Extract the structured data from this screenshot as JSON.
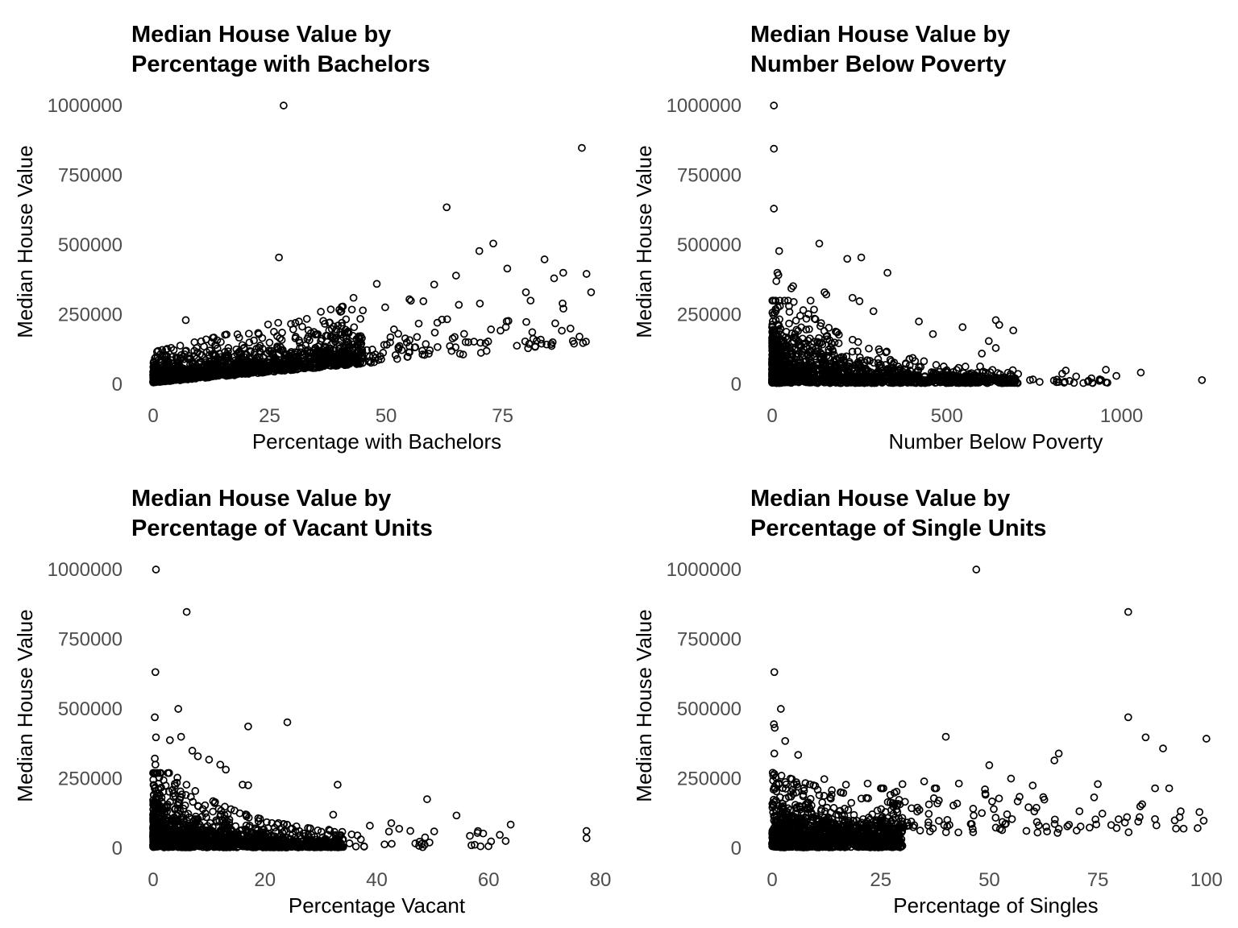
{
  "page": {
    "background": "#ffffff",
    "description": "2x2 grid of scatter plots of census tract data"
  },
  "chart_data": {
    "type": "scatter",
    "figure_layout": "2x2 grid, shared y variable",
    "grid": "off",
    "axis_lines": "none",
    "legend": "none",
    "style": {
      "point_shape": "open-circle",
      "point_color": "#000000",
      "title_color": "#000000",
      "axis_title_color": "#000000",
      "tick_label_color": "#4d4d4d",
      "background": "#ffffff"
    },
    "panels": [
      {
        "id": "bachelors",
        "title_lines": [
          "Median House Value by",
          " Percentage with Bachelors"
        ],
        "xlabel": "Percentage with Bachelors",
        "ylabel": "Median House Value",
        "x_ticks": [
          0,
          25,
          50,
          75
        ],
        "x_range": [
          0,
          96
        ],
        "y_ticks": [
          0,
          250000,
          500000,
          750000,
          1000000
        ],
        "y_range": [
          0,
          1050000
        ],
        "trend": "positive correlation; dense rising band from ~40000 at x=0 to ~200000 at x=80",
        "outliers": [
          [
            28,
            1000000
          ],
          [
            92,
            848000
          ],
          [
            63,
            635000
          ],
          [
            73,
            505000
          ],
          [
            70,
            478000
          ],
          [
            27,
            455000
          ],
          [
            84,
            448000
          ],
          [
            76,
            415000
          ],
          [
            88,
            400000
          ],
          [
            93,
            396000
          ],
          [
            65,
            390000
          ],
          [
            48,
            360000
          ],
          [
            43,
            310000
          ],
          [
            55,
            305000
          ],
          [
            80,
            330000
          ],
          [
            94,
            330000
          ],
          [
            81,
            300000
          ],
          [
            58,
            298000
          ],
          [
            45,
            265000
          ],
          [
            36,
            260000
          ],
          [
            62,
            232000
          ],
          [
            7,
            230000
          ]
        ],
        "cloud": {
          "seed": 11,
          "components": [
            {
              "n": 1360,
              "x": {
                "min": 0,
                "max": 45,
                "pow": 1.4
              },
              "y": {
                "base": 6000,
                "slope": 1500,
                "spread": 26000,
                "spreadSlope": 600,
                "clampMax": 380000
              }
            },
            {
              "n": 135,
              "x": {
                "min": 40,
                "max": 93,
                "pow": 1.6
              },
              "y": {
                "base": 6000,
                "slope": 1500,
                "spread": 26000,
                "spreadSlope": 600,
                "clampMax": 380000
              }
            }
          ]
        }
      },
      {
        "id": "poverty",
        "title_lines": [
          "Median House Value by",
          " Number Below Poverty"
        ],
        "xlabel": "Number Below Poverty",
        "ylabel": "Median House Value",
        "x_ticks": [
          0,
          500,
          1000
        ],
        "x_range": [
          0,
          1280
        ],
        "y_ticks": [
          0,
          250000,
          500000,
          750000,
          1000000
        ],
        "y_range": [
          0,
          1050000
        ],
        "trend": "negative/decaying; dense mass below x=300, values shrink toward 0 as poverty count grows",
        "outliers": [
          [
            5,
            1000000
          ],
          [
            5,
            845000
          ],
          [
            5,
            630000
          ],
          [
            135,
            505000
          ],
          [
            20,
            478000
          ],
          [
            255,
            455000
          ],
          [
            215,
            450000
          ],
          [
            330,
            400000
          ],
          [
            15,
            400000
          ],
          [
            18,
            392000
          ],
          [
            12,
            370000
          ],
          [
            60,
            352000
          ],
          [
            55,
            344000
          ],
          [
            150,
            330000
          ],
          [
            155,
            322000
          ],
          [
            230,
            310000
          ],
          [
            110,
            300000
          ],
          [
            250,
            298000
          ],
          [
            290,
            262000
          ],
          [
            120,
            268000
          ],
          [
            420,
            225000
          ],
          [
            640,
            230000
          ],
          [
            650,
            213000
          ],
          [
            545,
            205000
          ],
          [
            690,
            193000
          ],
          [
            460,
            180000
          ],
          [
            620,
            155000
          ],
          [
            640,
            130000
          ],
          [
            600,
            110000
          ],
          [
            1055,
            42000
          ],
          [
            1230,
            15000
          ],
          [
            955,
            52000
          ],
          [
            985,
            30000
          ],
          [
            830,
            38000
          ],
          [
            870,
            28000
          ]
        ],
        "cloud": {
          "seed": 22,
          "components": [
            {
              "n": 1440,
              "x": {
                "min": 0,
                "max": 700,
                "pow": 2.2
              },
              "y": {
                "base": 4000,
                "spread": 9000,
                "decay": {
                  "scale": 80000,
                  "tau": 220
                },
                "clampMax": 300000
              }
            },
            {
              "n": 32,
              "x": {
                "min": 650,
                "max": 960,
                "pow": 1.0
              },
              "y": {
                "base": 4000,
                "spread": 12000,
                "clampMax": 70000
              }
            }
          ]
        }
      },
      {
        "id": "vacant",
        "title_lines": [
          "Median House Value by",
          " Percentage of Vacant Units"
        ],
        "xlabel": "Percentage Vacant",
        "ylabel": "Median House Value",
        "x_ticks": [
          0,
          20,
          40,
          60,
          80
        ],
        "x_range": [
          0,
          80
        ],
        "y_ticks": [
          0,
          250000,
          500000,
          750000,
          1000000
        ],
        "y_range": [
          0,
          1050000
        ],
        "trend": "negative/decaying; tall dense column near x=0 thinning rapidly past x=30",
        "outliers": [
          [
            0.5,
            1000000
          ],
          [
            6,
            848000
          ],
          [
            0.4,
            632000
          ],
          [
            4.5,
            500000
          ],
          [
            0.3,
            470000
          ],
          [
            24,
            452000
          ],
          [
            17,
            437000
          ],
          [
            5,
            400000
          ],
          [
            0.5,
            398000
          ],
          [
            3,
            388000
          ],
          [
            7,
            350000
          ],
          [
            8,
            330000
          ],
          [
            0.3,
            322000
          ],
          [
            10,
            318000
          ],
          [
            12,
            300000
          ],
          [
            0.4,
            300000
          ],
          [
            13,
            282000
          ],
          [
            1,
            232000
          ],
          [
            33,
            228000
          ],
          [
            16,
            228000
          ],
          [
            17,
            226000
          ],
          [
            49,
            176000
          ],
          [
            44,
            70000
          ],
          [
            46,
            62000
          ],
          [
            58,
            55000
          ],
          [
            62,
            48000
          ],
          [
            77.5,
            62000
          ],
          [
            77.5,
            36000
          ]
        ],
        "cloud": {
          "seed": 33,
          "components": [
            {
              "n": 1450,
              "x": {
                "min": 0,
                "max": 34,
                "pow": 1.9
              },
              "y": {
                "base": 3000,
                "spread": 8000,
                "decay": {
                  "scale": 72000,
                  "tau": 13
                },
                "clampMax": 270000
              }
            },
            {
              "n": 40,
              "x": {
                "min": 30,
                "max": 64,
                "pow": 1.3
              },
              "y": {
                "base": 3000,
                "spread": 28000,
                "clampMax": 130000
              }
            }
          ]
        }
      },
      {
        "id": "singles",
        "title_lines": [
          "Median House Value by",
          " Percentage of Single Units"
        ],
        "xlabel": "Percentage of Singles",
        "ylabel": "Median House Value",
        "x_ticks": [
          0,
          25,
          50,
          75,
          100
        ],
        "x_range": [
          0,
          103
        ],
        "y_ticks": [
          0,
          250000,
          500000,
          750000,
          1000000
        ],
        "y_range": [
          0,
          1050000
        ],
        "trend": "dense block below x=25; sparse mid-value points spread out to x=100",
        "outliers": [
          [
            47,
            1000000
          ],
          [
            82,
            848000
          ],
          [
            0.5,
            632000
          ],
          [
            2,
            500000
          ],
          [
            82,
            470000
          ],
          [
            0.4,
            445000
          ],
          [
            0.6,
            432000
          ],
          [
            3,
            385000
          ],
          [
            40,
            400000
          ],
          [
            86,
            398000
          ],
          [
            100,
            393000
          ],
          [
            90,
            358000
          ],
          [
            0.5,
            340000
          ],
          [
            6,
            335000
          ],
          [
            66,
            340000
          ],
          [
            65,
            315000
          ],
          [
            75,
            230000
          ],
          [
            50,
            298000
          ],
          [
            55,
            250000
          ],
          [
            12,
            248000
          ],
          [
            22,
            232000
          ],
          [
            30,
            230000
          ],
          [
            43,
            232000
          ],
          [
            17,
            228000
          ],
          [
            60,
            225000
          ],
          [
            35,
            240000
          ]
        ],
        "cloud": {
          "seed": 44,
          "components": [
            {
              "n": 1290,
              "x": {
                "min": 0,
                "max": 30,
                "pow": 1.3
              },
              "y": {
                "base": 3000,
                "spread": 12000,
                "decay": {
                  "scale": 52000,
                  "tau": 40
                },
                "clampMax": 280000
              }
            },
            {
              "n": 140,
              "x": {
                "min": 25,
                "max": 100,
                "pow": 1.7
              },
              "y": {
                "base": 55000,
                "spread": 60000,
                "clampMax": 215000
              }
            }
          ]
        }
      }
    ]
  }
}
